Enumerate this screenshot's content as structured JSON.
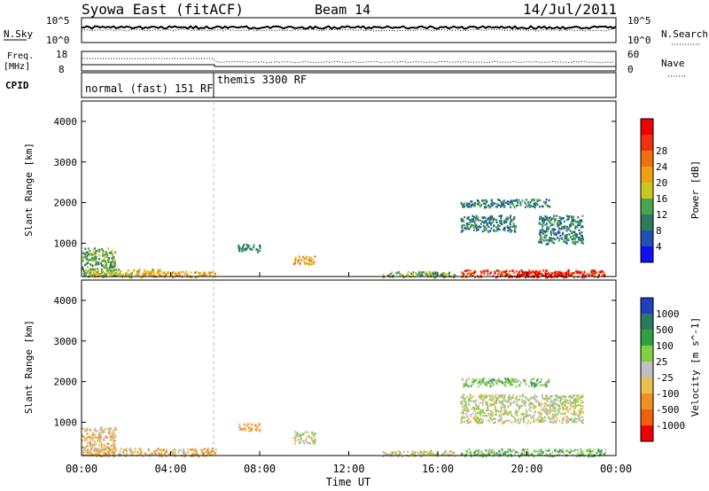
{
  "header": {
    "station": "Syowa East (fitACF)",
    "beam": "Beam 14",
    "date": "14/Jul/2011"
  },
  "panels": {
    "nsky_label": "N.Sky",
    "nsearch_label": "N.Search",
    "freq_label_1": "Freq.",
    "freq_label_2": "[MHz]",
    "nave_label": "Nave",
    "cpid_label": "CPID",
    "nsky_ticks": [
      "10^5",
      "10^0"
    ],
    "nsearch_ticks": [
      "10^5",
      "10^0"
    ],
    "freq_ticks": [
      "18",
      "8"
    ],
    "nave_ticks": [
      "60",
      "0"
    ]
  },
  "cpid": {
    "segments": [
      {
        "label": "normal (fast) 151 RF",
        "start_hour": 0,
        "end_hour": 6
      },
      {
        "label": "themis 3300 RF",
        "start_hour": 6,
        "end_hour": 24
      }
    ]
  },
  "colors": {
    "power_scale": [
      "#1010f0",
      "#2050b0",
      "#2e7a5c",
      "#48a44e",
      "#c8c820",
      "#f0a010",
      "#f07010",
      "#f03010",
      "#f00000"
    ],
    "velocity_scale": [
      "#f00000",
      "#f06010",
      "#f09020",
      "#e8c050",
      "#c0c0c0",
      "#80d040",
      "#30a040",
      "#2a7a60",
      "#2040c0"
    ]
  },
  "chart_data": [
    {
      "type": "heatmap",
      "title": "Power",
      "ylabel": "Slant Range [km]",
      "xlabel": "",
      "x_ticks": [
        "00:00",
        "04:00",
        "08:00",
        "12:00",
        "16:00",
        "20:00",
        "00:00"
      ],
      "x_range_hours": [
        0,
        24
      ],
      "y_ticks": [
        "1000",
        "2000",
        "3000",
        "4000"
      ],
      "ylim": [
        180,
        4500
      ],
      "colorbar": {
        "label": "Power [dB]",
        "tick_labels": [
          "4",
          "8",
          "12",
          "16",
          "20",
          "24",
          "28"
        ],
        "range": [
          0,
          30
        ]
      },
      "echo_regions": [
        {
          "t0": 0.0,
          "t1": 1.5,
          "r0": 200,
          "r1": 900,
          "value": 10
        },
        {
          "t0": 0.3,
          "t1": 3.5,
          "r0": 180,
          "r1": 380,
          "value": 16
        },
        {
          "t0": 2.8,
          "t1": 6.0,
          "r0": 180,
          "r1": 320,
          "value": 18
        },
        {
          "t0": 7.0,
          "t1": 8.0,
          "r0": 800,
          "r1": 1000,
          "value": 8
        },
        {
          "t0": 9.5,
          "t1": 10.5,
          "r0": 500,
          "r1": 700,
          "value": 18
        },
        {
          "t0": 13.5,
          "t1": 16.8,
          "r0": 180,
          "r1": 320,
          "value": 10
        },
        {
          "t0": 17.0,
          "t1": 23.5,
          "r0": 180,
          "r1": 360,
          "value": 24
        },
        {
          "t0": 19.5,
          "t1": 22.0,
          "r0": 180,
          "r1": 320,
          "value": 28
        },
        {
          "t0": 17.0,
          "t1": 19.5,
          "r0": 1300,
          "r1": 1700,
          "value": 8
        },
        {
          "t0": 20.5,
          "t1": 22.5,
          "r0": 1000,
          "r1": 1700,
          "value": 8
        },
        {
          "t0": 17.0,
          "t1": 21.0,
          "r0": 1900,
          "r1": 2100,
          "value": 8
        }
      ]
    },
    {
      "type": "heatmap",
      "title": "Velocity",
      "ylabel": "Slant Range [km]",
      "xlabel": "Time UT",
      "x_ticks": [
        "00:00",
        "04:00",
        "08:00",
        "12:00",
        "16:00",
        "20:00",
        "00:00"
      ],
      "x_range_hours": [
        0,
        24
      ],
      "y_ticks": [
        "1000",
        "2000",
        "3000",
        "4000"
      ],
      "ylim": [
        180,
        4500
      ],
      "colorbar": {
        "label": "Velocity [m s^-1]",
        "tick_labels": [
          "1000",
          "500",
          "100",
          "25",
          "-25",
          "-100",
          "-500",
          "-1000"
        ],
        "range": [
          -1200,
          1200
        ]
      },
      "echo_regions": [
        {
          "t0": 0.0,
          "t1": 1.5,
          "r0": 200,
          "r1": 900,
          "value": -300
        },
        {
          "t0": 0.3,
          "t1": 6.0,
          "r0": 180,
          "r1": 380,
          "value": -150
        },
        {
          "t0": 7.0,
          "t1": 8.0,
          "r0": 800,
          "r1": 1000,
          "value": -300
        },
        {
          "t0": 9.5,
          "t1": 10.5,
          "r0": 500,
          "r1": 800,
          "value": 60
        },
        {
          "t0": 13.5,
          "t1": 16.8,
          "r0": 180,
          "r1": 320,
          "value": 0
        },
        {
          "t0": 17.0,
          "t1": 23.5,
          "r0": 180,
          "r1": 360,
          "value": 200
        },
        {
          "t0": 17.0,
          "t1": 22.5,
          "r0": 1000,
          "r1": 1700,
          "value": -20
        },
        {
          "t0": 17.0,
          "t1": 21.0,
          "r0": 1900,
          "r1": 2100,
          "value": 150
        }
      ]
    }
  ]
}
